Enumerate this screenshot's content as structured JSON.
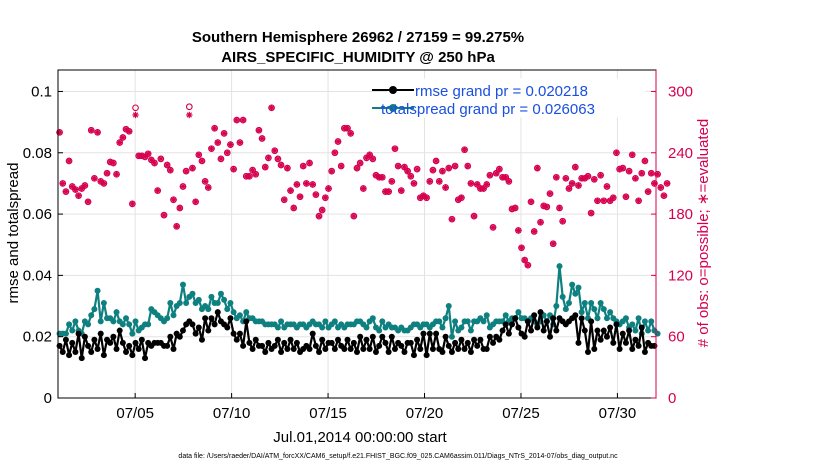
{
  "chart_data": {
    "type": "line",
    "title": "Southern Hemisphere 26962 / 27159 = 99.275%",
    "subtitle": "AIRS_SPECIFIC_HUMIDITY @ 250 hPa",
    "xlabel": "Jul.01,2014 00:00:00 start",
    "ylabel_left": "rmse and totalspread",
    "ylabel_right": "# of obs: o=possible; ∗=evaluated",
    "x_ticks": [
      "07/05",
      "07/10",
      "07/15",
      "07/20",
      "07/25",
      "07/30"
    ],
    "x_tick_days": [
      5,
      10,
      15,
      20,
      25,
      30
    ],
    "xlim": [
      1,
      32
    ],
    "ylim_left": [
      0,
      0.107
    ],
    "ylim_right": [
      0,
      321
    ],
    "y_left_ticks": [
      "0",
      "0.02",
      "0.04",
      "0.06",
      "0.08",
      "0.1"
    ],
    "y_left_tick_values": [
      0,
      0.02,
      0.04,
      0.06,
      0.08,
      0.1
    ],
    "y_right_ticks": [
      "0",
      "60",
      "120",
      "180",
      "240",
      "300"
    ],
    "y_right_tick_values": [
      0,
      60,
      120,
      180,
      240,
      300
    ],
    "legend": [
      "rmse grand pr = 0.020218",
      "totalspread grand pr = 0.026063"
    ],
    "legend_position": "top-right",
    "grid": true,
    "footer": "data file: /Users/raeder/DAI/ATM_forcXX/CAM6_setup/f.e21.FHIST_BGC.f09_025.CAM6assim.011/Diags_NTrS_2014-07/obs_diag_output.nc",
    "colors": {
      "rmse": "#000000",
      "totalspread": "#0f8080",
      "obs": "#d6004f",
      "legend_text": "#1a4fe0"
    },
    "series": [
      {
        "name": "rmse",
        "values": [
          0.017,
          0.015,
          0.019,
          0.014,
          0.018,
          0.015,
          0.021,
          0.013,
          0.02,
          0.017,
          0.015,
          0.019,
          0.016,
          0.021,
          0.014,
          0.019,
          0.018,
          0.02,
          0.016,
          0.022,
          0.018,
          0.015,
          0.017,
          0.014,
          0.018,
          0.016,
          0.019,
          0.013,
          0.018,
          0.017,
          0.018,
          0.018,
          0.018,
          0.017,
          0.017,
          0.02,
          0.016,
          0.021,
          0.02,
          0.022,
          0.024,
          0.025,
          0.024,
          0.021,
          0.023,
          0.019,
          0.026,
          0.022,
          0.026,
          0.024,
          0.028,
          0.025,
          0.024,
          0.023,
          0.026,
          0.021,
          0.019,
          0.021,
          0.017,
          0.025,
          0.018,
          0.016,
          0.019,
          0.017,
          0.017,
          0.015,
          0.018,
          0.016,
          0.017,
          0.019,
          0.015,
          0.018,
          0.016,
          0.019,
          0.016,
          0.018,
          0.015,
          0.016,
          0.017,
          0.016,
          0.021,
          0.017,
          0.015,
          0.019,
          0.016,
          0.018,
          0.018,
          0.016,
          0.019,
          0.017,
          0.016,
          0.019,
          0.016,
          0.018,
          0.015,
          0.02,
          0.016,
          0.019,
          0.016,
          0.02,
          0.015,
          0.017,
          0.02,
          0.018,
          0.015,
          0.02,
          0.016,
          0.018,
          0.017,
          0.015,
          0.018,
          0.018,
          0.014,
          0.019,
          0.016,
          0.021,
          0.014,
          0.021,
          0.016,
          0.021,
          0.016,
          0.015,
          0.02,
          0.017,
          0.015,
          0.018,
          0.016,
          0.019,
          0.016,
          0.018,
          0.015,
          0.019,
          0.017,
          0.019,
          0.016,
          0.016,
          0.02,
          0.018,
          0.02,
          0.019,
          0.022,
          0.024,
          0.021,
          0.024,
          0.026,
          0.023,
          0.021,
          0.02,
          0.025,
          0.022,
          0.027,
          0.023,
          0.028,
          0.022,
          0.025,
          0.02,
          0.026,
          0.022,
          0.026,
          0.025,
          0.024,
          0.025,
          0.026,
          0.027,
          0.018,
          0.026,
          0.022,
          0.015,
          0.025,
          0.016,
          0.022,
          0.019,
          0.022,
          0.02,
          0.023,
          0.018,
          0.024,
          0.016,
          0.021,
          0.018,
          0.022,
          0.016,
          0.019,
          0.017,
          0.023,
          0.015,
          0.018,
          0.017,
          0.017
        ]
      },
      {
        "name": "totalspread",
        "values": [
          0.021,
          0.021,
          0.021,
          0.024,
          0.022,
          0.025,
          0.022,
          0.021,
          0.025,
          0.024,
          0.027,
          0.029,
          0.035,
          0.025,
          0.031,
          0.026,
          0.026,
          0.025,
          0.028,
          0.025,
          0.024,
          0.026,
          0.024,
          0.021,
          0.025,
          0.022,
          0.023,
          0.024,
          0.024,
          0.029,
          0.028,
          0.027,
          0.026,
          0.025,
          0.026,
          0.031,
          0.027,
          0.03,
          0.031,
          0.037,
          0.031,
          0.033,
          0.034,
          0.031,
          0.032,
          0.029,
          0.03,
          0.029,
          0.033,
          0.031,
          0.031,
          0.034,
          0.032,
          0.029,
          0.031,
          0.028,
          0.026,
          0.027,
          0.025,
          0.028,
          0.026,
          0.026,
          0.025,
          0.025,
          0.025,
          0.024,
          0.024,
          0.024,
          0.024,
          0.023,
          0.025,
          0.023,
          0.024,
          0.024,
          0.024,
          0.023,
          0.024,
          0.024,
          0.023,
          0.024,
          0.025,
          0.024,
          0.024,
          0.023,
          0.025,
          0.023,
          0.024,
          0.025,
          0.023,
          0.024,
          0.023,
          0.024,
          0.024,
          0.024,
          0.025,
          0.025,
          0.024,
          0.023,
          0.025,
          0.026,
          0.023,
          0.022,
          0.025,
          0.023,
          0.024,
          0.023,
          0.023,
          0.022,
          0.023,
          0.022,
          0.022,
          0.023,
          0.024,
          0.024,
          0.023,
          0.024,
          0.024,
          0.023,
          0.024,
          0.025,
          0.025,
          0.023,
          0.026,
          0.03,
          0.02,
          0.025,
          0.022,
          0.023,
          0.025,
          0.025,
          0.022,
          0.025,
          0.025,
          0.026,
          0.025,
          0.027,
          0.023,
          0.024,
          0.025,
          0.025,
          0.025,
          0.027,
          0.025,
          0.026,
          0.026,
          0.028,
          0.026,
          0.026,
          0.025,
          0.026,
          0.025,
          0.024,
          0.025,
          0.027,
          0.025,
          0.027,
          0.024,
          0.03,
          0.043,
          0.033,
          0.029,
          0.031,
          0.037,
          0.034,
          0.036,
          0.028,
          0.031,
          0.026,
          0.031,
          0.029,
          0.026,
          0.031,
          0.029,
          0.026,
          0.028,
          0.026,
          0.025,
          0.024,
          0.025,
          0.026,
          0.023,
          0.024,
          0.022,
          0.026,
          0.021,
          0.025,
          0.022,
          0.025,
          0.022,
          0.021
        ]
      },
      {
        "name": "obs_possible",
        "values": [
          260,
          210,
          202,
          232,
          207,
          204,
          198,
          205,
          208,
          192,
          262,
          215,
          260,
          212,
          210,
          220,
          231,
          230,
          219,
          250,
          255,
          263,
          261,
          190,
          284,
          237,
          237,
          236,
          239,
          233,
          230,
          203,
          234,
          179,
          228,
          223,
          194,
          168,
          186,
          207,
          222,
          285,
          225,
          192,
          238,
          232,
          212,
          206,
          244,
          264,
          250,
          234,
          259,
          240,
          248,
          224,
          272,
          250,
          272,
          217,
          217,
          223,
          219,
          262,
          254,
          226,
          235,
          284,
          242,
          234,
          228,
          194,
          225,
          203,
          186,
          209,
          197,
          227,
          210,
          230,
          209,
          199,
          178,
          184,
          196,
          205,
          222,
          240,
          251,
          227,
          264,
          264,
          259,
          178,
          225,
          230,
          205,
          235,
          238,
          234,
          218,
          216,
          216,
          202,
          202,
          212,
          244,
          227,
          203,
          226,
          222,
          217,
          210,
          224,
          196,
          198,
          196,
          212,
          223,
          232,
          212,
          222,
          206,
          225,
          175,
          227,
          194,
          196,
          243,
          227,
          210,
          178,
          209,
          205,
          205,
          209,
          218,
          167,
          220,
          224,
          216,
          216,
          212,
          185,
          186,
          164,
          147,
          135,
          130,
          192,
          163,
          225,
          172,
          188,
          187,
          200,
          151,
          216,
          186,
          173,
          215,
          205,
          210,
          226,
          208,
          215,
          215,
          217,
          181,
          214,
          193,
          218,
          193,
          207,
          193,
          196,
          240,
          224,
          225,
          197,
          222,
          238,
          215,
          193,
          220,
          232,
          202,
          220,
          210,
          219,
          206,
          198,
          210
        ]
      },
      {
        "name": "obs_evaluated",
        "values": [
          260,
          210,
          202,
          232,
          207,
          204,
          198,
          205,
          208,
          192,
          262,
          215,
          260,
          212,
          210,
          220,
          231,
          230,
          219,
          250,
          255,
          263,
          261,
          190,
          277,
          237,
          237,
          236,
          239,
          233,
          230,
          203,
          234,
          179,
          228,
          223,
          194,
          168,
          186,
          207,
          222,
          277,
          225,
          192,
          238,
          232,
          212,
          206,
          244,
          264,
          250,
          234,
          259,
          240,
          248,
          224,
          272,
          250,
          272,
          217,
          217,
          223,
          219,
          262,
          254,
          226,
          235,
          284,
          242,
          234,
          228,
          194,
          225,
          203,
          186,
          209,
          197,
          227,
          210,
          230,
          209,
          199,
          178,
          184,
          196,
          205,
          222,
          240,
          251,
          227,
          264,
          264,
          259,
          178,
          225,
          230,
          205,
          235,
          238,
          234,
          218,
          216,
          216,
          202,
          202,
          212,
          244,
          227,
          203,
          226,
          222,
          217,
          210,
          224,
          196,
          198,
          196,
          212,
          223,
          232,
          212,
          222,
          206,
          225,
          175,
          227,
          194,
          196,
          243,
          227,
          210,
          178,
          209,
          205,
          205,
          209,
          218,
          167,
          220,
          224,
          216,
          216,
          212,
          185,
          186,
          164,
          147,
          135,
          130,
          192,
          163,
          225,
          172,
          188,
          187,
          200,
          151,
          216,
          186,
          173,
          215,
          205,
          210,
          226,
          208,
          215,
          215,
          217,
          181,
          214,
          193,
          218,
          193,
          207,
          193,
          196,
          240,
          224,
          225,
          197,
          222,
          238,
          215,
          193,
          220,
          232,
          202,
          220,
          210,
          219,
          206,
          198,
          210
        ]
      }
    ]
  }
}
